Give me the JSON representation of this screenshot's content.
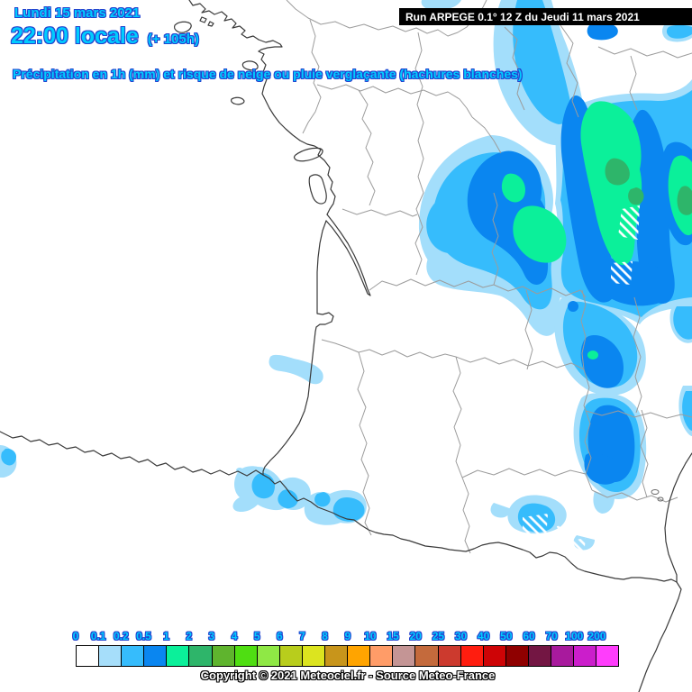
{
  "header": {
    "date_label": "Lundi 15 mars 2021",
    "time_label": "22:00 locale",
    "offset_label": "(+ 105h)",
    "subtitle": "Précipitation en 1h (mm) et risque de neige ou pluie verglaçante (hachures blanches)",
    "run_label": "Run ARPEGE 0.1° 12 Z du Jeudi 11 mars 2021"
  },
  "footer": {
    "copyright": "Copyright © 2021 Meteociel.fr - Source Meteo-France"
  },
  "legend": {
    "unit": "mm",
    "labels": [
      "0",
      "0.1",
      "0.2",
      "0.5",
      "1",
      "2",
      "3",
      "4",
      "5",
      "6",
      "7",
      "8",
      "9",
      "10",
      "15",
      "20",
      "25",
      "30",
      "40",
      "50",
      "60",
      "70",
      "100",
      "200"
    ],
    "colors": [
      "#FFFFFF",
      "#A6DEFA",
      "#36BCFC",
      "#0A86F0",
      "#0BF09A",
      "#2EB56A",
      "#5FB42E",
      "#4FDE12",
      "#8FE845",
      "#B8CD1C",
      "#DCE41F",
      "#C8951B",
      "#FFA400",
      "#FF9C68",
      "#C49595",
      "#C46A3C",
      "#CC3A2E",
      "#FF1D0F",
      "#CE0406",
      "#8F0000",
      "#731643",
      "#A81A9D",
      "#CB1ECB",
      "#FF3DFC"
    ]
  },
  "map": {
    "precip_palette": {
      "light": "#A3DEFB",
      "cyan": "#36BCFC",
      "blue": "#0A86F0",
      "green": "#0BF09A",
      "dark_green": "#2EB56A"
    },
    "border_color": "#9C9C9C",
    "coast_color": "#3A3A3A",
    "hatch_meaning": "risque de neige ou pluie verglaçante"
  }
}
